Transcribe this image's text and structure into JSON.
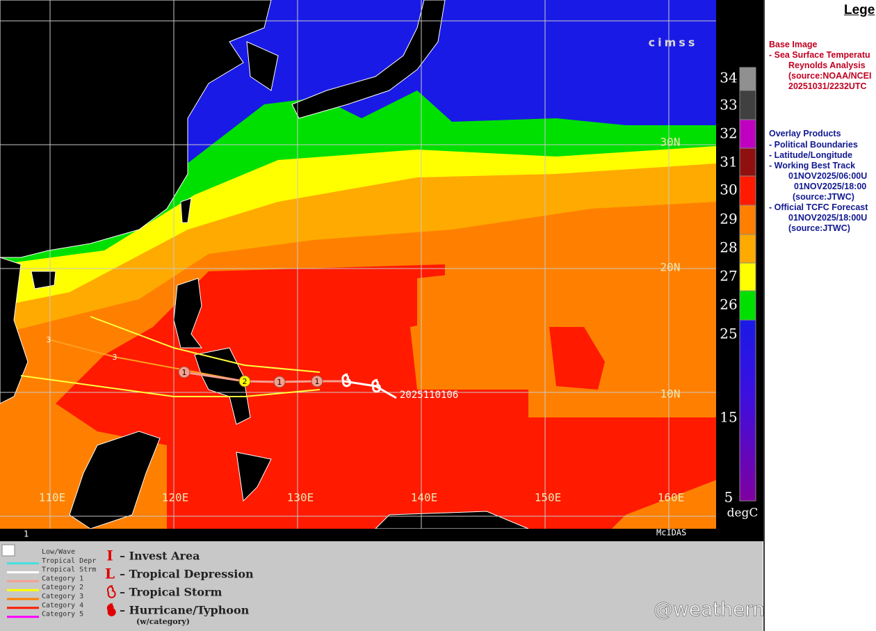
{
  "map": {
    "lon_labels": [
      "110E",
      "120E",
      "130E",
      "140E",
      "150E",
      "160E"
    ],
    "lat_labels": [
      "30N",
      "20N",
      "10N"
    ],
    "track_label": "2025110106",
    "track_points": [
      "3",
      "3",
      "1",
      "2",
      "1",
      "1"
    ],
    "logo": "cimss",
    "footer_left": "1",
    "footer_right": "McIDAS"
  },
  "colorbar": {
    "ticks": [
      34,
      33,
      32,
      31,
      30,
      29,
      28,
      27,
      26,
      25,
      15,
      5
    ],
    "unit": "degC"
  },
  "legend": {
    "title": "Lege",
    "base_heading": "Base Image",
    "base_items": [
      "- Sea Surface Temperatu",
      "Reynolds Analysis",
      "(source:NOAA/NCEI",
      "20251031/2232UTC"
    ],
    "overlay_heading": "Overlay Products",
    "overlay_items": [
      "- Political Boundaries",
      "- Latitude/Longitude",
      "- Working Best Track",
      "01NOV2025/06:00U",
      "01NOV2025/18:00",
      "(source:JTWC)",
      "- Official TCFC Forecast",
      "01NOV2025/18:00U",
      "(source:JTWC)"
    ]
  },
  "key": {
    "lines": [
      "Low/Wave",
      "Tropical Depr",
      "Tropical Strm",
      "Category 1",
      "Category 2",
      "Category 3",
      "Category 4",
      "Category 5"
    ],
    "symbols": [
      {
        "glyph": "I",
        "label": "– Invest Area"
      },
      {
        "glyph": "L",
        "label": "– Tropical Depression"
      },
      {
        "label": "– Tropical Storm"
      },
      {
        "label": "– Hurricane/Typhoon"
      }
    ],
    "note": "(w/category)"
  },
  "watermark": "@weatherman_信欣"
}
